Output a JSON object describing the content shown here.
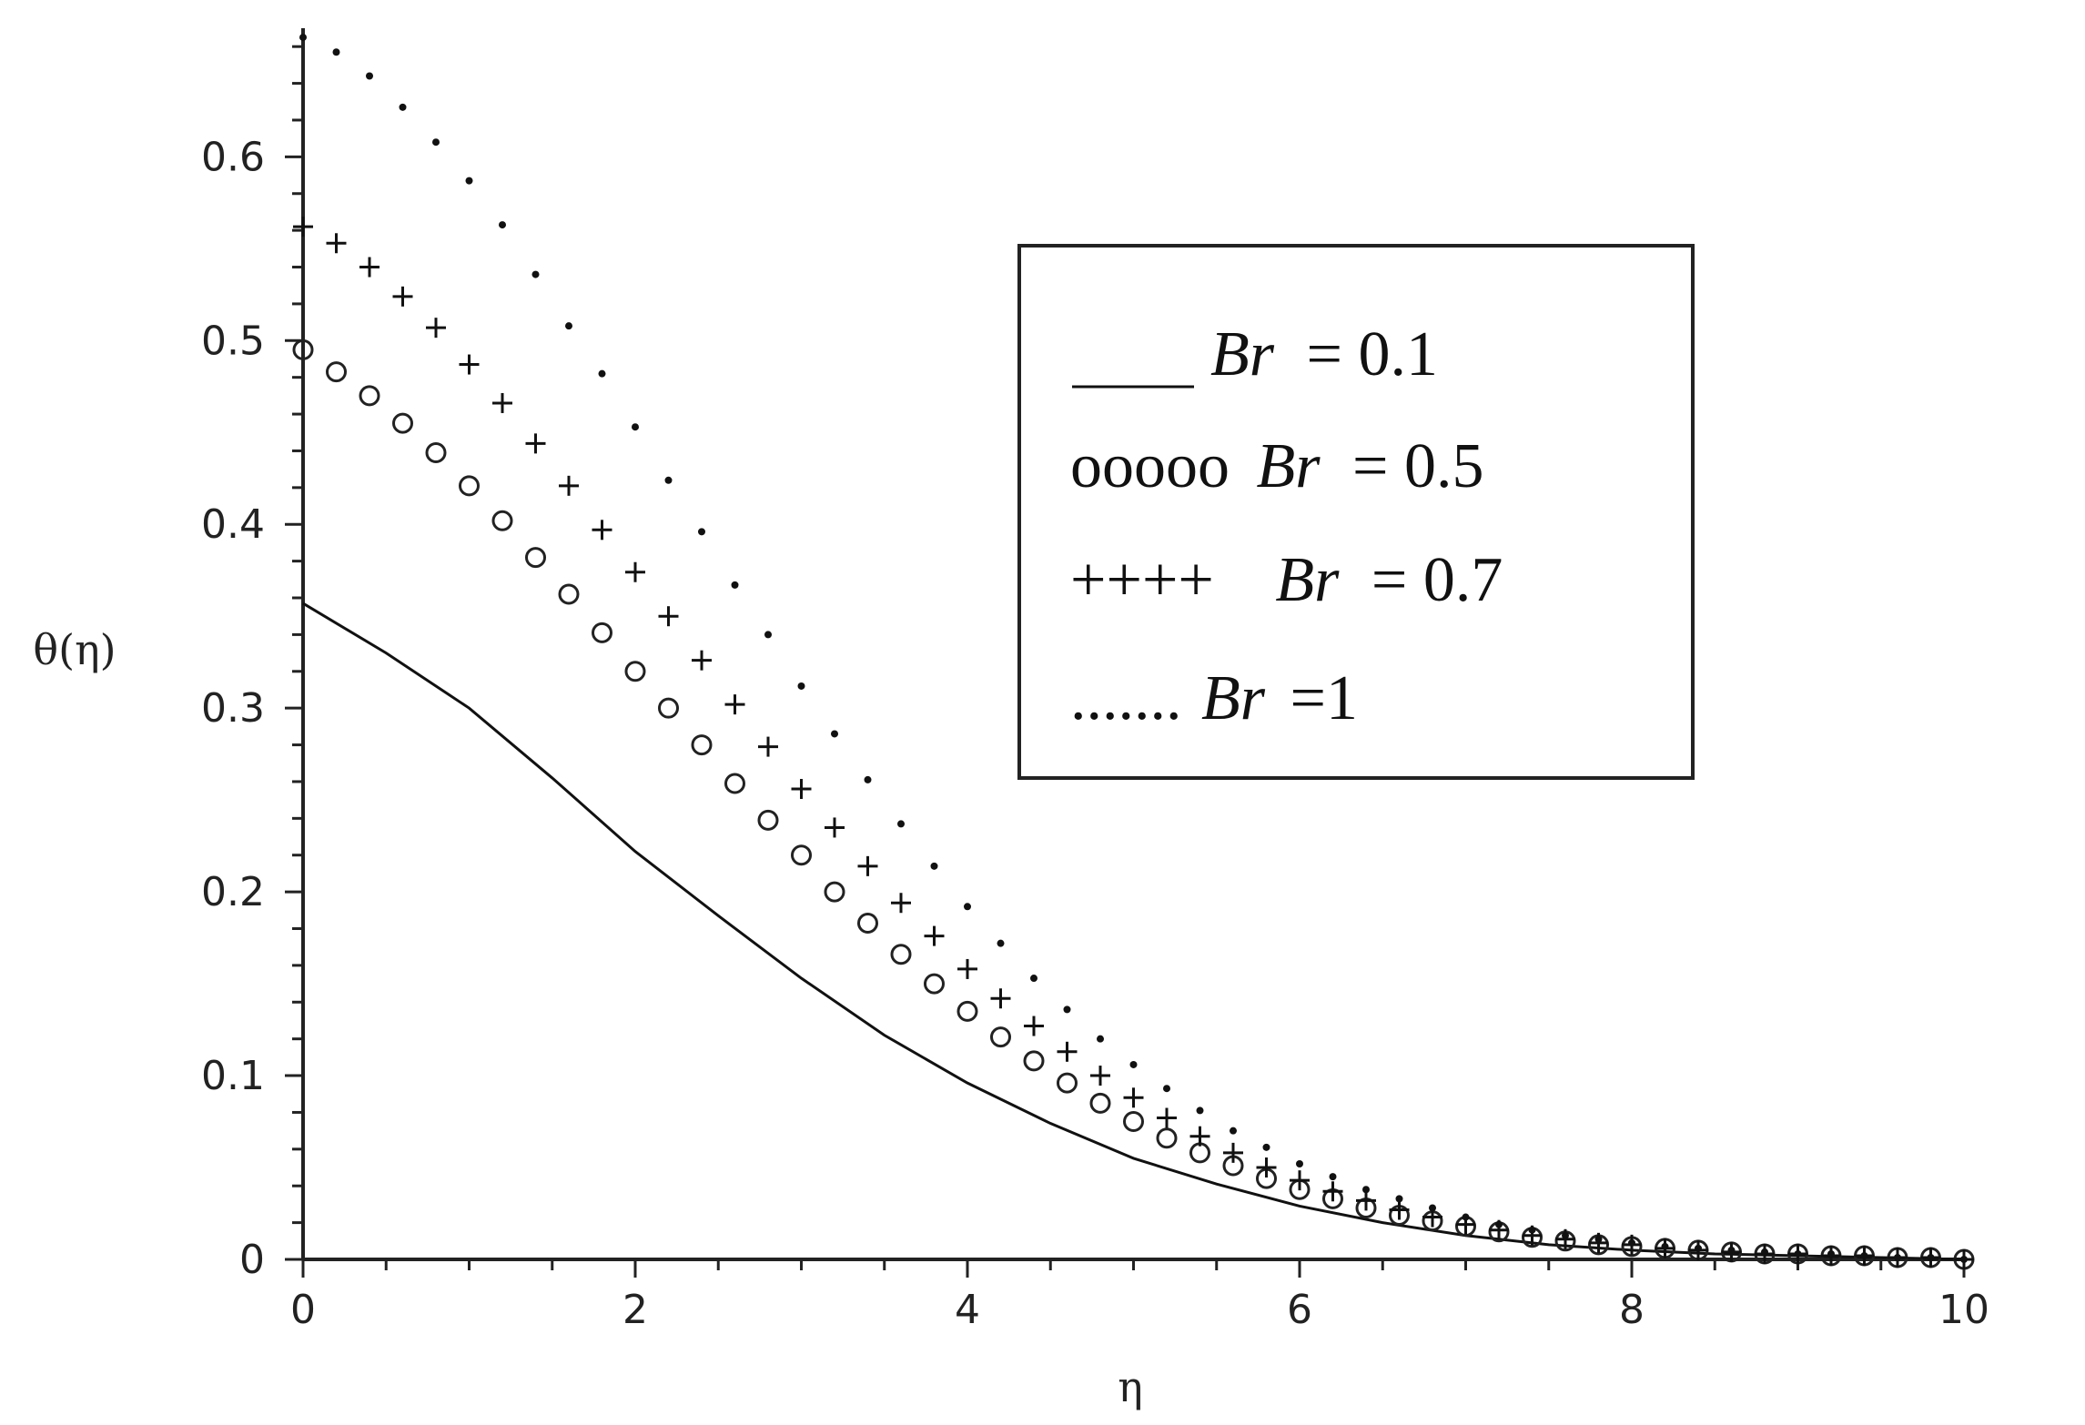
{
  "chart_data": {
    "type": "line",
    "xlabel": "η",
    "ylabel": "θ(η)",
    "xlim": [
      0,
      10
    ],
    "ylim": [
      0,
      0.67
    ],
    "xticks": [
      0,
      2,
      4,
      6,
      8,
      10
    ],
    "yticks": [
      0,
      0.1,
      0.2,
      0.3,
      0.4,
      0.5,
      0.6
    ],
    "grid": false,
    "legend_position": "top-right",
    "series": [
      {
        "name": "Br = 0.1",
        "legend_symbol": "____",
        "legend_var": "Br",
        "legend_value": "= 0.1",
        "marker": "line",
        "x": [
          0,
          0.5,
          1,
          1.5,
          2,
          2.5,
          3,
          3.5,
          4,
          4.5,
          5,
          5.5,
          6,
          6.5,
          7,
          7.5,
          8,
          8.5,
          9,
          9.5,
          10
        ],
        "values": [
          0.357,
          0.33,
          0.3,
          0.262,
          0.222,
          0.187,
          0.153,
          0.122,
          0.096,
          0.074,
          0.055,
          0.041,
          0.029,
          0.02,
          0.013,
          0.008,
          0.005,
          0.003,
          0.002,
          0.001,
          0.0
        ]
      },
      {
        "name": "Br = 0.5",
        "legend_symbol": "ooooo",
        "legend_var": "Br",
        "legend_value": "= 0.5",
        "marker": "circle",
        "x": [
          0,
          0.2,
          0.4,
          0.6,
          0.8,
          1.0,
          1.2,
          1.4,
          1.6,
          1.8,
          2.0,
          2.2,
          2.4,
          2.6,
          2.8,
          3.0,
          3.2,
          3.4,
          3.6,
          3.8,
          4.0,
          4.2,
          4.4,
          4.6,
          4.8,
          5.0,
          5.2,
          5.4,
          5.6,
          5.8,
          6.0,
          6.2,
          6.4,
          6.6,
          6.8,
          7.0,
          7.2,
          7.4,
          7.6,
          7.8,
          8.0,
          8.2,
          8.4,
          8.6,
          8.8,
          9.0,
          9.2,
          9.4,
          9.6,
          9.8,
          10.0
        ],
        "values": [
          0.495,
          0.483,
          0.47,
          0.455,
          0.439,
          0.421,
          0.402,
          0.382,
          0.362,
          0.341,
          0.32,
          0.3,
          0.28,
          0.259,
          0.239,
          0.22,
          0.2,
          0.183,
          0.166,
          0.15,
          0.135,
          0.121,
          0.108,
          0.096,
          0.085,
          0.075,
          0.066,
          0.058,
          0.051,
          0.044,
          0.038,
          0.033,
          0.028,
          0.024,
          0.021,
          0.018,
          0.015,
          0.012,
          0.01,
          0.008,
          0.007,
          0.006,
          0.005,
          0.004,
          0.003,
          0.003,
          0.002,
          0.002,
          0.001,
          0.001,
          0.0
        ]
      },
      {
        "name": "Br = 0.7",
        "legend_symbol": "++++",
        "legend_var": "Br",
        "legend_value": "= 0.7",
        "marker": "plus",
        "x": [
          0,
          0.2,
          0.4,
          0.6,
          0.8,
          1.0,
          1.2,
          1.4,
          1.6,
          1.8,
          2.0,
          2.2,
          2.4,
          2.6,
          2.8,
          3.0,
          3.2,
          3.4,
          3.6,
          3.8,
          4.0,
          4.2,
          4.4,
          4.6,
          4.8,
          5.0,
          5.2,
          5.4,
          5.6,
          5.8,
          6.0,
          6.2,
          6.4,
          6.6,
          6.8,
          7.0,
          7.2,
          7.4,
          7.6,
          7.8,
          8.0,
          8.2,
          8.4,
          8.6,
          8.8,
          9.0,
          9.2,
          9.4,
          9.6,
          9.8,
          10.0
        ],
        "values": [
          0.562,
          0.553,
          0.54,
          0.524,
          0.507,
          0.487,
          0.466,
          0.444,
          0.421,
          0.397,
          0.374,
          0.35,
          0.326,
          0.302,
          0.279,
          0.256,
          0.235,
          0.214,
          0.194,
          0.176,
          0.158,
          0.142,
          0.127,
          0.113,
          0.1,
          0.088,
          0.077,
          0.067,
          0.058,
          0.05,
          0.043,
          0.037,
          0.032,
          0.027,
          0.023,
          0.019,
          0.016,
          0.013,
          0.011,
          0.009,
          0.008,
          0.006,
          0.005,
          0.004,
          0.003,
          0.003,
          0.002,
          0.002,
          0.001,
          0.001,
          0.0
        ]
      },
      {
        "name": "Br =1",
        "legend_symbol": ".......",
        "legend_var": "Br",
        "legend_value": "=1",
        "marker": "dot",
        "x": [
          0,
          0.2,
          0.4,
          0.6,
          0.8,
          1.0,
          1.2,
          1.4,
          1.6,
          1.8,
          2.0,
          2.2,
          2.4,
          2.6,
          2.8,
          3.0,
          3.2,
          3.4,
          3.6,
          3.8,
          4.0,
          4.2,
          4.4,
          4.6,
          4.8,
          5.0,
          5.2,
          5.4,
          5.6,
          5.8,
          6.0,
          6.2,
          6.4,
          6.6,
          6.8,
          7.0,
          7.2,
          7.4,
          7.6,
          7.8,
          8.0,
          8.2,
          8.4,
          8.6,
          8.8,
          9.0,
          9.2,
          9.4,
          9.6,
          9.8,
          10.0
        ],
        "values": [
          0.665,
          0.657,
          0.644,
          0.627,
          0.608,
          0.587,
          0.563,
          0.536,
          0.508,
          0.482,
          0.453,
          0.424,
          0.396,
          0.367,
          0.34,
          0.312,
          0.286,
          0.261,
          0.237,
          0.214,
          0.192,
          0.172,
          0.153,
          0.136,
          0.12,
          0.106,
          0.093,
          0.081,
          0.07,
          0.061,
          0.052,
          0.045,
          0.038,
          0.033,
          0.028,
          0.023,
          0.019,
          0.016,
          0.013,
          0.011,
          0.009,
          0.007,
          0.006,
          0.005,
          0.004,
          0.003,
          0.003,
          0.002,
          0.001,
          0.001,
          0.0
        ]
      }
    ]
  }
}
